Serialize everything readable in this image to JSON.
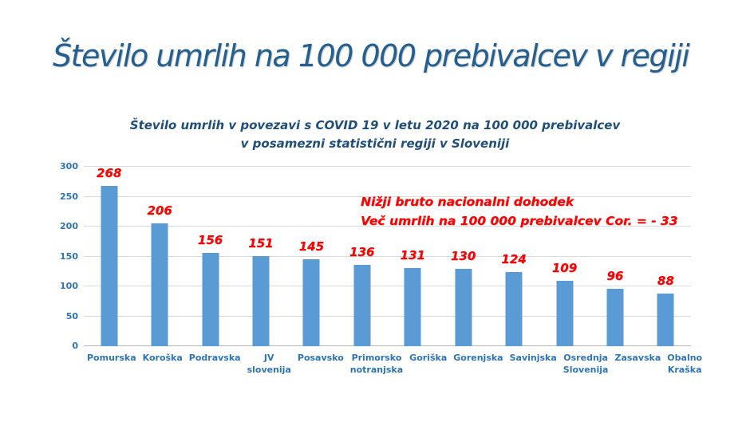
{
  "slide": {
    "title": "Število umrlih na 100 000 prebivalcev v regiji",
    "title_color": "#235F8F"
  },
  "chart_data": {
    "type": "bar",
    "title": "Število umrlih v povezavi s COVID 19 v letu 2020 na 100 000 prebivalcev v posamezni statistični regiji v Sloveniji",
    "categories": [
      "Pomurska",
      "Koroška",
      "Podravska",
      "JV slovenija",
      "Posavsko",
      "Primorsko notranjska",
      "Goriška",
      "Gorenjska",
      "Savinjska",
      "Osrednja Slovenija",
      "Zasavska",
      "Obalno Kraška"
    ],
    "values": [
      268,
      206,
      156,
      151,
      145,
      136,
      131,
      130,
      124,
      109,
      96,
      88
    ],
    "xlabel": "",
    "ylabel": "",
    "ylim": [
      0,
      300
    ],
    "yticks": [
      0,
      50,
      100,
      150,
      200,
      250,
      300
    ],
    "grid": true,
    "legend": false,
    "bar_color": "#5B9BD5",
    "value_label_color": "#FF0000",
    "axis_text_color": "#2E74B5",
    "subtitle_color": "#1F4E79",
    "annotation": {
      "lines": [
        "Nižji bruto nacionalni dohodek",
        "Več umrlih na 100 000 prebivalcev Cor. = - 33"
      ],
      "color": "#FF0000"
    }
  }
}
